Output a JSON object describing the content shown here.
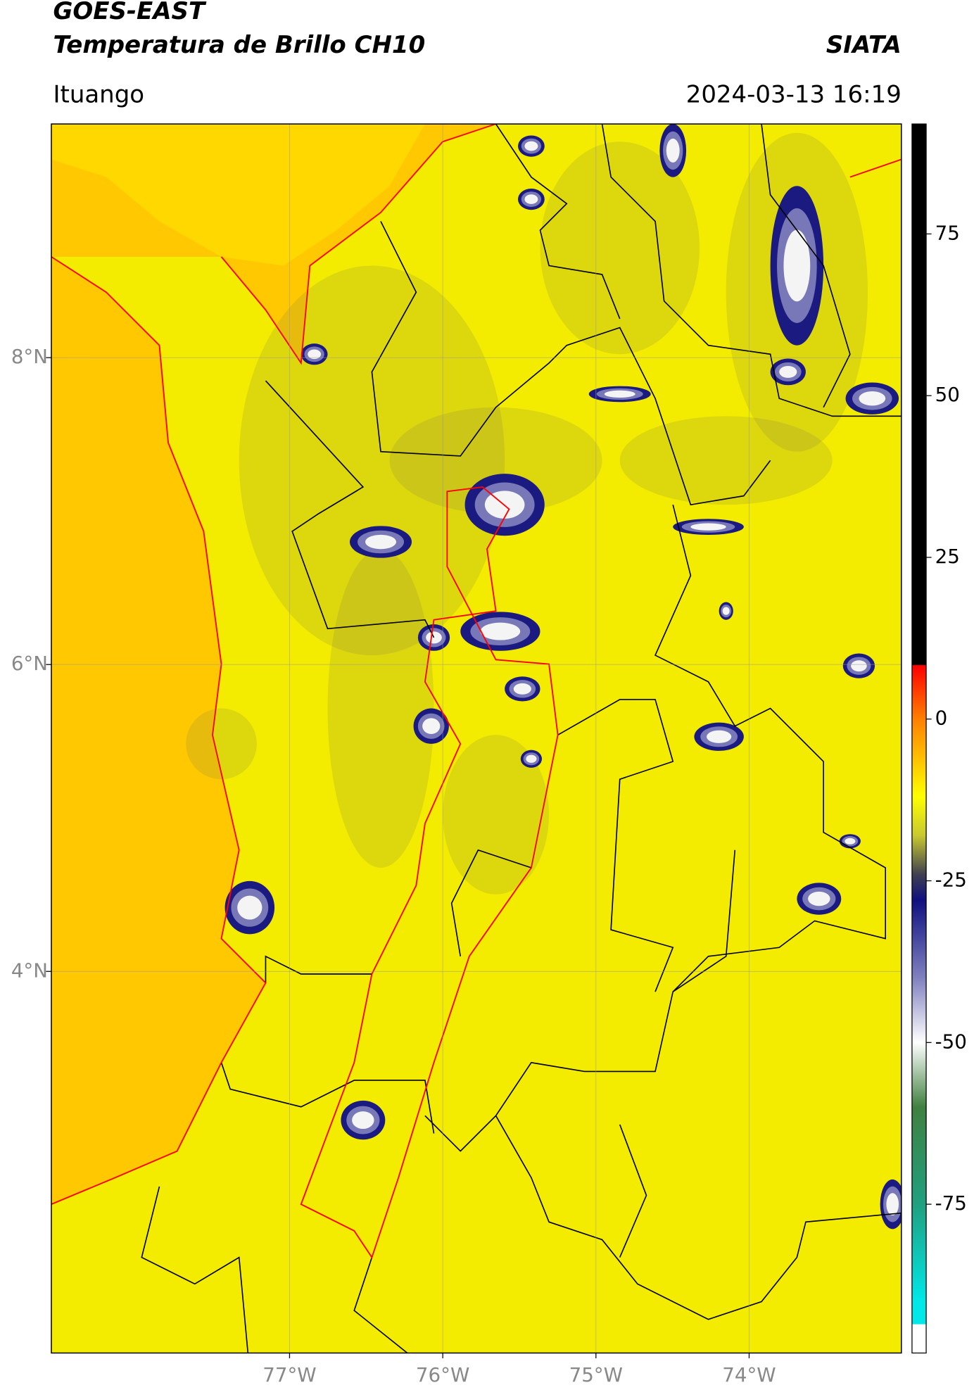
{
  "header": {
    "title_line1": "GOES-EAST",
    "title_line2": "Temperatura de Brillo CH10",
    "agency": "SIATA",
    "region": "Ituango",
    "datetime": "2024-03-13 16:19"
  },
  "map": {
    "xlim": [
      -78.555,
      -73.006
    ],
    "ylim": [
      1.513,
      9.523
    ],
    "xticks": [
      {
        "value": -77,
        "label": "77°W"
      },
      {
        "value": -76,
        "label": "76°W"
      },
      {
        "value": -75,
        "label": "75°W"
      },
      {
        "value": -74,
        "label": "74°W"
      }
    ],
    "yticks": [
      {
        "value": 8,
        "label": "8°N"
      },
      {
        "value": 6,
        "label": "6°N"
      },
      {
        "value": 4,
        "label": "4°N"
      }
    ],
    "grid": true
  },
  "colorbar": {
    "lim": [
      -98,
      92
    ],
    "ticks": [
      75,
      50,
      25,
      0,
      -25,
      -50,
      -75
    ],
    "colormap": [
      {
        "value": 92,
        "color": "#000000"
      },
      {
        "value": 8.4,
        "color": "#000000"
      },
      {
        "value": 8.3,
        "color": "#ff0000"
      },
      {
        "value": 0,
        "color": "#ff8000"
      },
      {
        "value": -12,
        "color": "#ffff00"
      },
      {
        "value": -18,
        "color": "#c8c830"
      },
      {
        "value": -24,
        "color": "#404050"
      },
      {
        "value": -28,
        "color": "#101080"
      },
      {
        "value": -40,
        "color": "#8080c0"
      },
      {
        "value": -50,
        "color": "#ffffff"
      },
      {
        "value": -60,
        "color": "#408040"
      },
      {
        "value": -75,
        "color": "#20a080"
      },
      {
        "value": -90,
        "color": "#00e8e8"
      },
      {
        "value": -93.5,
        "color": "#00e8e8"
      },
      {
        "value": -93.6,
        "color": "#ffffff"
      },
      {
        "value": -98,
        "color": "#ffffff"
      }
    ]
  }
}
